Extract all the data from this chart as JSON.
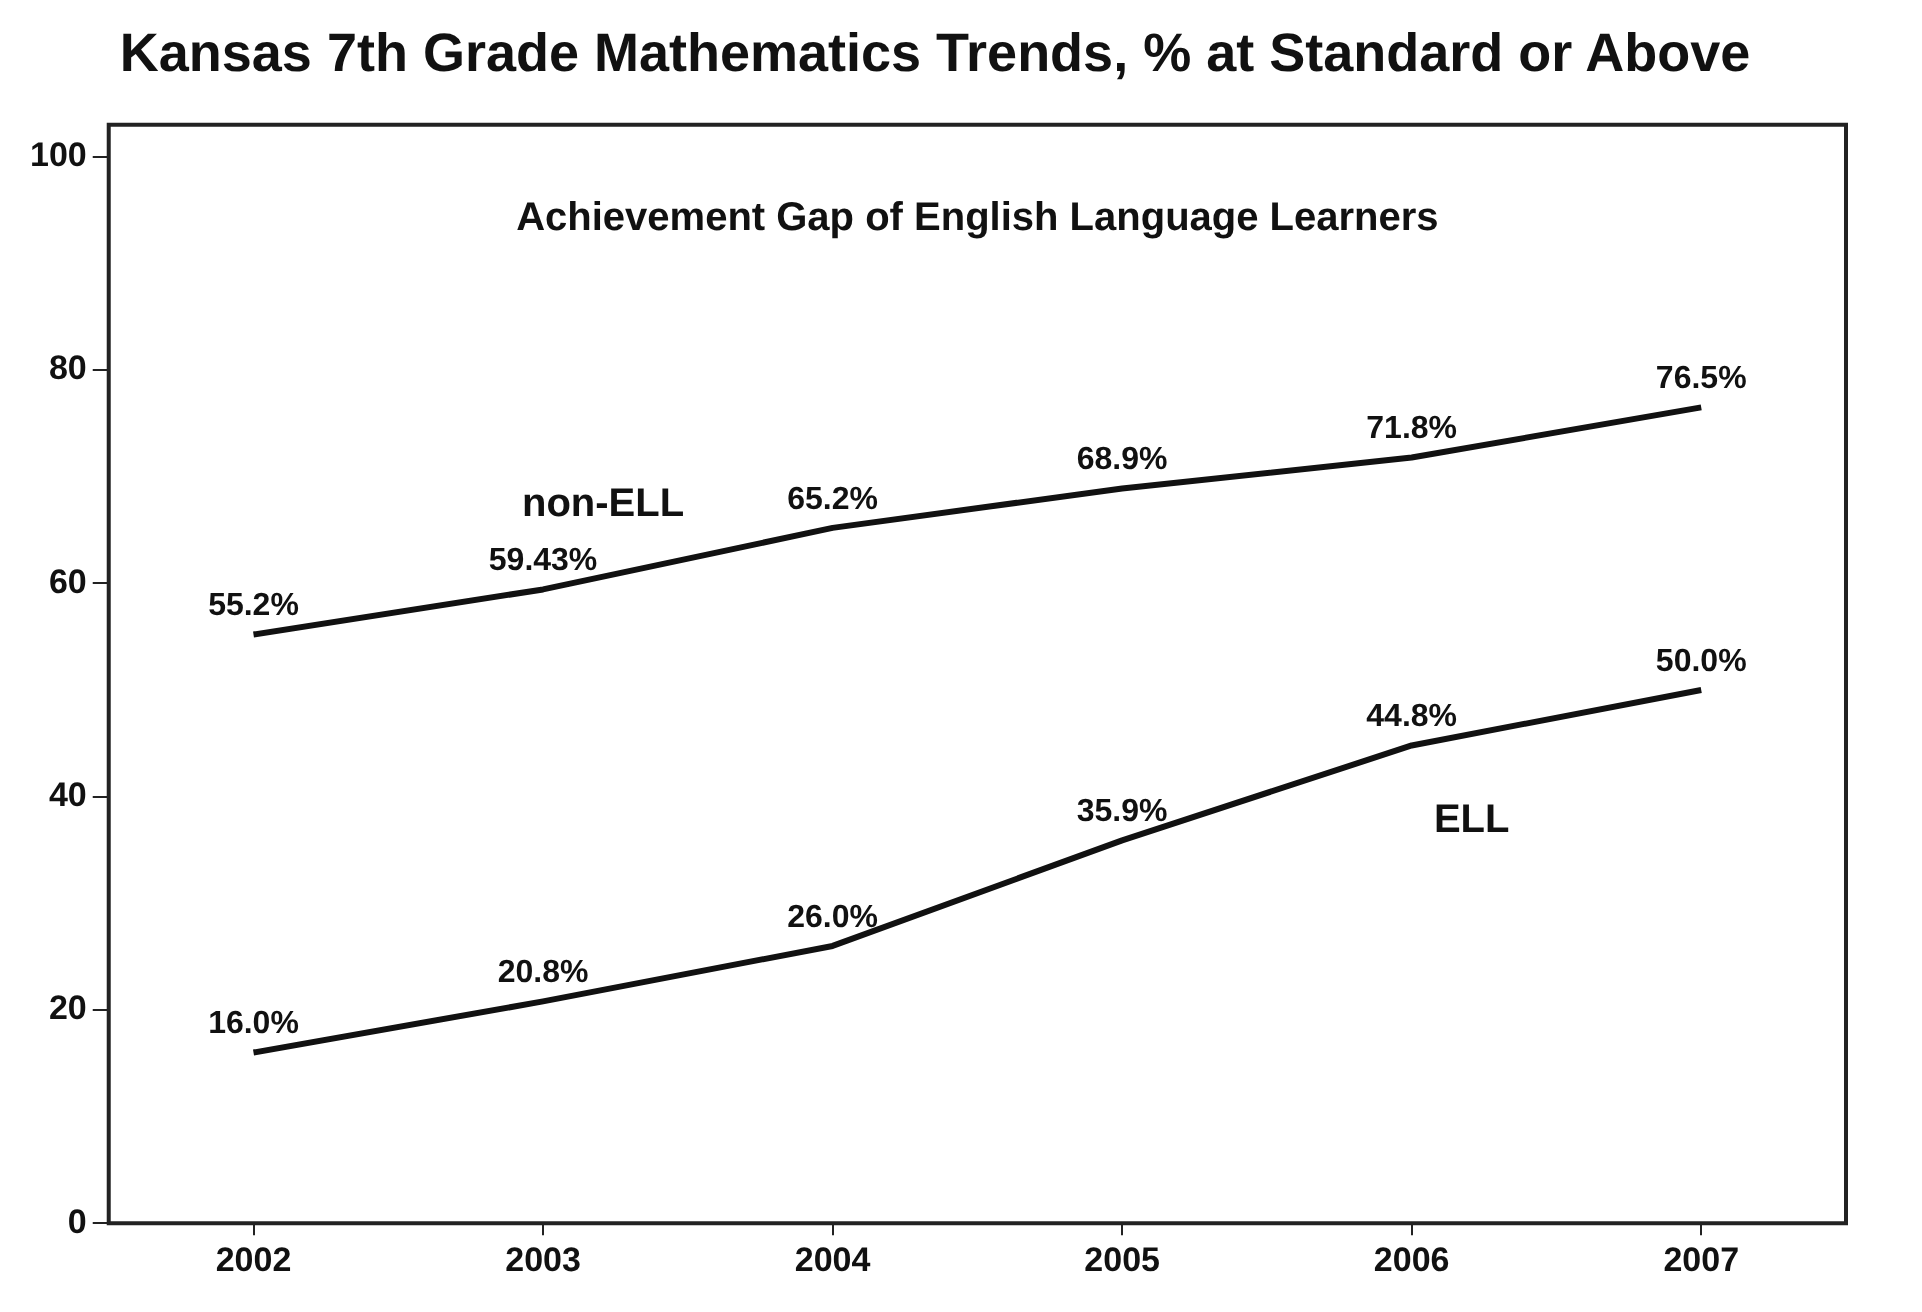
{
  "chart_data": {
    "type": "line",
    "title": "Kansas 7th Grade Mathematics Trends, % at Standard or Above",
    "subtitle": "Achievement Gap of English Language Learners",
    "categories": [
      "2002",
      "2003",
      "2004",
      "2005",
      "2006",
      "2007"
    ],
    "series": [
      {
        "name": "non-ELL",
        "color": "#111111",
        "values": [
          55.2,
          59.43,
          65.2,
          68.9,
          71.8,
          76.5
        ],
        "value_labels": [
          "55.2%",
          "59.43%",
          "65.2%",
          "68.9%",
          "71.8%",
          "76.5%"
        ]
      },
      {
        "name": "ELL",
        "color": "#111111",
        "values": [
          16.0,
          20.8,
          26.0,
          35.9,
          44.8,
          50.0
        ],
        "value_labels": [
          "16.0%",
          "20.8%",
          "26.0%",
          "35.9%",
          "44.8%",
          "50.0%"
        ]
      }
    ],
    "ylim": [
      0,
      103
    ],
    "yticks": [
      0,
      20,
      40,
      60,
      80,
      100
    ],
    "grid": false,
    "legend": false,
    "marker": "none",
    "line_style": "solid"
  }
}
